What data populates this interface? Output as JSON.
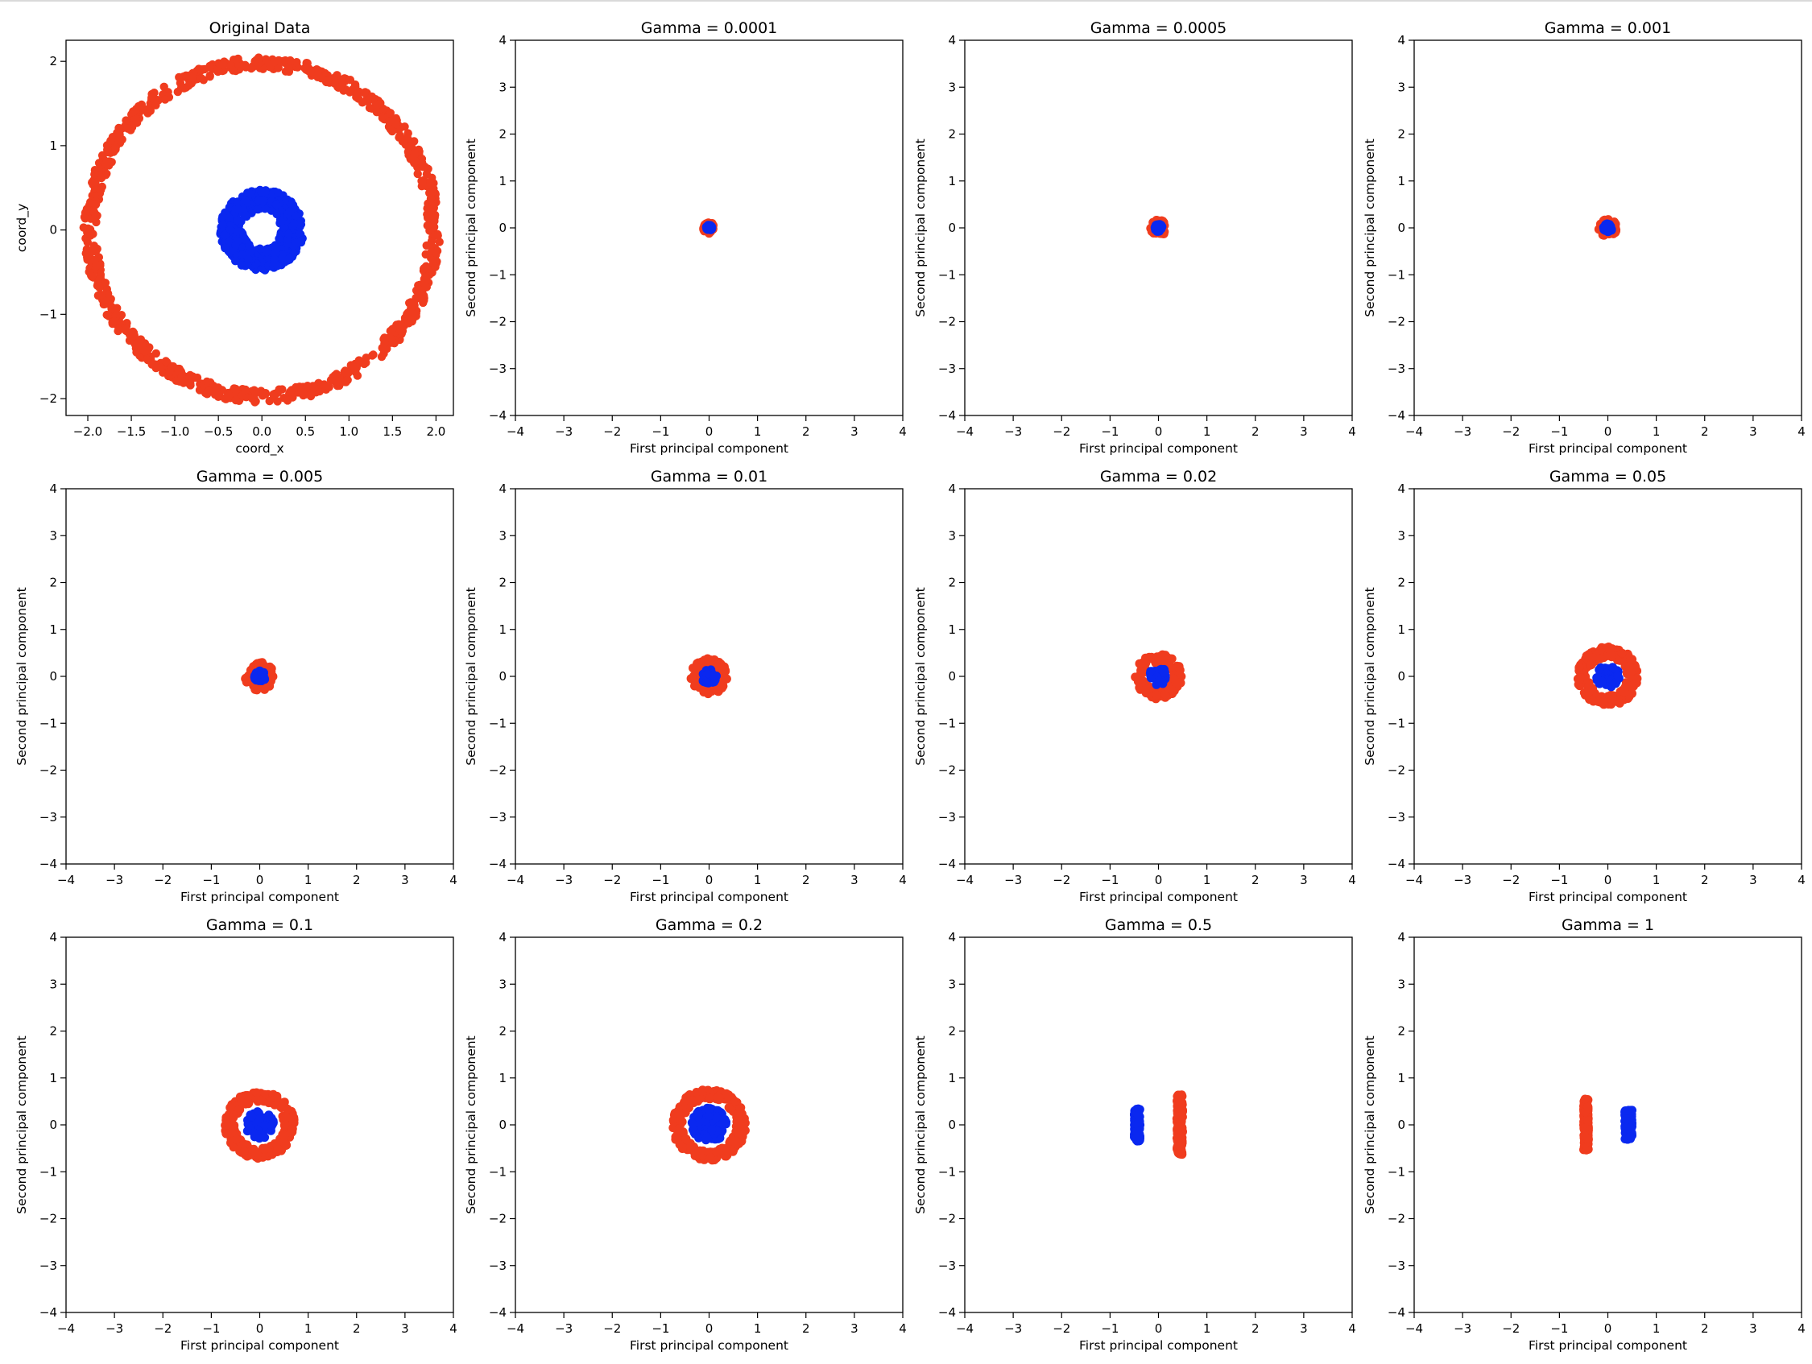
{
  "figure": {
    "colors": {
      "outer": "#f03c1e",
      "inner": "#0a28f0",
      "frame": "#000000"
    }
  },
  "chart_data": [
    {
      "type": "scatter",
      "title": "Original Data",
      "xlabel": "coord_x",
      "ylabel": "coord_y",
      "xlim": [
        -2.25,
        2.2
      ],
      "ylim": [
        -2.2,
        2.25
      ],
      "xticks": [
        -2.0,
        -1.5,
        -1.0,
        -0.5,
        0.0,
        0.5,
        1.0,
        1.5,
        2.0
      ],
      "xtick_labels": [
        "−2.0",
        "−1.5",
        "−1.0",
        "−0.5",
        "0.0",
        "0.5",
        "1.0",
        "1.5",
        "2.0"
      ],
      "yticks": [
        -2,
        -1,
        0,
        1,
        2
      ],
      "ytick_labels": [
        "−2",
        "−1",
        "0",
        "1",
        "2"
      ],
      "grid": false,
      "series": [
        {
          "shape": "ring",
          "center": [
            0,
            0
          ],
          "r_min": 1.9,
          "r_max": 2.05
        },
        {
          "shape": "ring",
          "center": [
            0,
            0
          ],
          "r_min": 0.22,
          "r_max": 0.48
        }
      ]
    },
    {
      "type": "scatter",
      "title": "Gamma = 0.0001",
      "xlabel": "First principal component",
      "ylabel": "Second principal component",
      "xlim": [
        -4,
        4
      ],
      "ylim": [
        -4,
        4
      ],
      "xticks": [
        -4,
        -3,
        -2,
        -1,
        0,
        1,
        2,
        3,
        4
      ],
      "xtick_labels": [
        "−4",
        "−3",
        "−2",
        "−1",
        "0",
        "1",
        "2",
        "3",
        "4"
      ],
      "yticks": [
        -4,
        -3,
        -2,
        -1,
        0,
        1,
        2,
        3,
        4
      ],
      "ytick_labels": [
        "−4",
        "−3",
        "−2",
        "−1",
        "0",
        "1",
        "2",
        "3",
        "4"
      ],
      "grid": false,
      "series": [
        {
          "shape": "ring",
          "center": [
            0,
            0
          ],
          "r_min": 0.0,
          "r_max": 0.12
        },
        {
          "shape": "ring",
          "center": [
            0,
            0
          ],
          "r_min": 0.0,
          "r_max": 0.06
        }
      ]
    },
    {
      "type": "scatter",
      "title": "Gamma = 0.0005",
      "xlabel": "First principal component",
      "ylabel": "Second principal component",
      "xlim": [
        -4,
        4
      ],
      "ylim": [
        -4,
        4
      ],
      "xticks": [
        -4,
        -3,
        -2,
        -1,
        0,
        1,
        2,
        3,
        4
      ],
      "xtick_labels": [
        "−4",
        "−3",
        "−2",
        "−1",
        "0",
        "1",
        "2",
        "3",
        "4"
      ],
      "yticks": [
        -4,
        -3,
        -2,
        -1,
        0,
        1,
        2,
        3,
        4
      ],
      "ytick_labels": [
        "−4",
        "−3",
        "−2",
        "−1",
        "0",
        "1",
        "2",
        "3",
        "4"
      ],
      "grid": false,
      "series": [
        {
          "shape": "ring",
          "center": [
            0,
            0
          ],
          "r_min": 0.0,
          "r_max": 0.17
        },
        {
          "shape": "ring",
          "center": [
            0,
            0
          ],
          "r_min": 0.0,
          "r_max": 0.08
        }
      ]
    },
    {
      "type": "scatter",
      "title": "Gamma = 0.001",
      "xlabel": "First principal component",
      "ylabel": "Second principal component",
      "xlim": [
        -4,
        4
      ],
      "ylim": [
        -4,
        4
      ],
      "xticks": [
        -4,
        -3,
        -2,
        -1,
        0,
        1,
        2,
        3,
        4
      ],
      "xtick_labels": [
        "−4",
        "−3",
        "−2",
        "−1",
        "0",
        "1",
        "2",
        "3",
        "4"
      ],
      "yticks": [
        -4,
        -3,
        -2,
        -1,
        0,
        1,
        2,
        3,
        4
      ],
      "ytick_labels": [
        "−4",
        "−3",
        "−2",
        "−1",
        "0",
        "1",
        "2",
        "3",
        "4"
      ],
      "grid": false,
      "series": [
        {
          "shape": "ring",
          "center": [
            0,
            0
          ],
          "r_min": 0.0,
          "r_max": 0.19
        },
        {
          "shape": "ring",
          "center": [
            0,
            0
          ],
          "r_min": 0.0,
          "r_max": 0.09
        }
      ]
    },
    {
      "type": "scatter",
      "title": "Gamma = 0.005",
      "xlabel": "First principal component",
      "ylabel": "Second principal component",
      "xlim": [
        -4,
        4
      ],
      "ylim": [
        -4,
        4
      ],
      "xticks": [
        -4,
        -3,
        -2,
        -1,
        0,
        1,
        2,
        3,
        4
      ],
      "xtick_labels": [
        "−4",
        "−3",
        "−2",
        "−1",
        "0",
        "1",
        "2",
        "3",
        "4"
      ],
      "yticks": [
        -4,
        -3,
        -2,
        -1,
        0,
        1,
        2,
        3,
        4
      ],
      "ytick_labels": [
        "−4",
        "−3",
        "−2",
        "−1",
        "0",
        "1",
        "2",
        "3",
        "4"
      ],
      "grid": false,
      "series": [
        {
          "shape": "ring",
          "center": [
            0,
            0
          ],
          "r_min": 0.07,
          "r_max": 0.3
        },
        {
          "shape": "ring",
          "center": [
            0,
            0
          ],
          "r_min": 0.0,
          "r_max": 0.12
        }
      ]
    },
    {
      "type": "scatter",
      "title": "Gamma = 0.01",
      "xlabel": "First principal component",
      "ylabel": "Second principal component",
      "xlim": [
        -4,
        4
      ],
      "ylim": [
        -4,
        4
      ],
      "xticks": [
        -4,
        -3,
        -2,
        -1,
        0,
        1,
        2,
        3,
        4
      ],
      "xtick_labels": [
        "−4",
        "−3",
        "−2",
        "−1",
        "0",
        "1",
        "2",
        "3",
        "4"
      ],
      "yticks": [
        -4,
        -3,
        -2,
        -1,
        0,
        1,
        2,
        3,
        4
      ],
      "ytick_labels": [
        "−4",
        "−3",
        "−2",
        "−1",
        "0",
        "1",
        "2",
        "3",
        "4"
      ],
      "grid": false,
      "series": [
        {
          "shape": "ring",
          "center": [
            0,
            0
          ],
          "r_min": 0.12,
          "r_max": 0.38
        },
        {
          "shape": "ring",
          "center": [
            0,
            0
          ],
          "r_min": 0.0,
          "r_max": 0.16
        }
      ]
    },
    {
      "type": "scatter",
      "title": "Gamma = 0.02",
      "xlabel": "First principal component",
      "ylabel": "Second principal component",
      "xlim": [
        -4,
        4
      ],
      "ylim": [
        -4,
        4
      ],
      "xticks": [
        -4,
        -3,
        -2,
        -1,
        0,
        1,
        2,
        3,
        4
      ],
      "xtick_labels": [
        "−4",
        "−3",
        "−2",
        "−1",
        "0",
        "1",
        "2",
        "3",
        "4"
      ],
      "yticks": [
        -4,
        -3,
        -2,
        -1,
        0,
        1,
        2,
        3,
        4
      ],
      "ytick_labels": [
        "−4",
        "−3",
        "−2",
        "−1",
        "0",
        "1",
        "2",
        "3",
        "4"
      ],
      "grid": false,
      "series": [
        {
          "shape": "ring",
          "center": [
            0,
            0
          ],
          "r_min": 0.28,
          "r_max": 0.48
        },
        {
          "shape": "ring",
          "center": [
            0,
            0
          ],
          "r_min": 0.0,
          "r_max": 0.2
        }
      ]
    },
    {
      "type": "scatter",
      "title": "Gamma = 0.05",
      "xlabel": "First principal component",
      "ylabel": "Second principal component",
      "xlim": [
        -4,
        4
      ],
      "ylim": [
        -4,
        4
      ],
      "xticks": [
        -4,
        -3,
        -2,
        -1,
        0,
        1,
        2,
        3,
        4
      ],
      "xtick_labels": [
        "−4",
        "−3",
        "−2",
        "−1",
        "0",
        "1",
        "2",
        "3",
        "4"
      ],
      "yticks": [
        -4,
        -3,
        -2,
        -1,
        0,
        1,
        2,
        3,
        4
      ],
      "ytick_labels": [
        "−4",
        "−3",
        "−2",
        "−1",
        "0",
        "1",
        "2",
        "3",
        "4"
      ],
      "grid": false,
      "series": [
        {
          "shape": "ring",
          "center": [
            0,
            0
          ],
          "r_min": 0.4,
          "r_max": 0.63
        },
        {
          "shape": "ring",
          "center": [
            0,
            0
          ],
          "r_min": 0.0,
          "r_max": 0.24
        }
      ]
    },
    {
      "type": "scatter",
      "title": "Gamma = 0.1",
      "xlabel": "First principal component",
      "ylabel": "Second principal component",
      "xlim": [
        -4,
        4
      ],
      "ylim": [
        -4,
        4
      ],
      "xticks": [
        -4,
        -3,
        -2,
        -1,
        0,
        1,
        2,
        3,
        4
      ],
      "xtick_labels": [
        "−4",
        "−3",
        "−2",
        "−1",
        "0",
        "1",
        "2",
        "3",
        "4"
      ],
      "yticks": [
        -4,
        -3,
        -2,
        -1,
        0,
        1,
        2,
        3,
        4
      ],
      "ytick_labels": [
        "−4",
        "−3",
        "−2",
        "−1",
        "0",
        "1",
        "2",
        "3",
        "4"
      ],
      "grid": false,
      "series": [
        {
          "shape": "ring",
          "center": [
            0,
            0
          ],
          "r_min": 0.5,
          "r_max": 0.72
        },
        {
          "shape": "ring",
          "center": [
            0,
            0
          ],
          "r_min": 0.03,
          "r_max": 0.29
        }
      ]
    },
    {
      "type": "scatter",
      "title": "Gamma = 0.2",
      "xlabel": "First principal component",
      "ylabel": "Second principal component",
      "xlim": [
        -4,
        4
      ],
      "ylim": [
        -4,
        4
      ],
      "xticks": [
        -4,
        -3,
        -2,
        -1,
        0,
        1,
        2,
        3,
        4
      ],
      "xtick_labels": [
        "−4",
        "−3",
        "−2",
        "−1",
        "0",
        "1",
        "2",
        "3",
        "4"
      ],
      "yticks": [
        -4,
        -3,
        -2,
        -1,
        0,
        1,
        2,
        3,
        4
      ],
      "ytick_labels": [
        "−4",
        "−3",
        "−2",
        "−1",
        "0",
        "1",
        "2",
        "3",
        "4"
      ],
      "grid": false,
      "series": [
        {
          "shape": "ring",
          "center": [
            0,
            0
          ],
          "r_min": 0.55,
          "r_max": 0.76
        },
        {
          "shape": "ring",
          "center": [
            0,
            0
          ],
          "r_min": 0.05,
          "r_max": 0.36
        }
      ]
    },
    {
      "type": "scatter",
      "title": "Gamma = 0.5",
      "xlabel": "First principal component",
      "ylabel": "Second principal component",
      "xlim": [
        -4,
        4
      ],
      "ylim": [
        -4,
        4
      ],
      "xticks": [
        -4,
        -3,
        -2,
        -1,
        0,
        1,
        2,
        3,
        4
      ],
      "xtick_labels": [
        "−4",
        "−3",
        "−2",
        "−1",
        "0",
        "1",
        "2",
        "3",
        "4"
      ],
      "yticks": [
        -4,
        -3,
        -2,
        -1,
        0,
        1,
        2,
        3,
        4
      ],
      "ytick_labels": [
        "−4",
        "−3",
        "−2",
        "−1",
        "0",
        "1",
        "2",
        "3",
        "4"
      ],
      "grid": false,
      "series": [
        {
          "shape": "strip",
          "x_range": [
            0.38,
            0.5
          ],
          "y_range": [
            -0.65,
            0.65
          ]
        },
        {
          "shape": "strip",
          "x_range": [
            -0.5,
            -0.38
          ],
          "y_range": [
            -0.35,
            0.35
          ]
        }
      ]
    },
    {
      "type": "scatter",
      "title": "Gamma = 1",
      "xlabel": "First principal component",
      "ylabel": "Second principal component",
      "xlim": [
        -4,
        4
      ],
      "ylim": [
        -4,
        4
      ],
      "xticks": [
        -4,
        -3,
        -2,
        -1,
        0,
        1,
        2,
        3,
        4
      ],
      "xtick_labels": [
        "−4",
        "−3",
        "−2",
        "−1",
        "0",
        "1",
        "2",
        "3",
        "4"
      ],
      "yticks": [
        -4,
        -3,
        -2,
        -1,
        0,
        1,
        2,
        3,
        4
      ],
      "ytick_labels": [
        "−4",
        "−3",
        "−2",
        "−1",
        "0",
        "1",
        "2",
        "3",
        "4"
      ],
      "grid": false,
      "series": [
        {
          "shape": "strip",
          "x_range": [
            -0.5,
            -0.4
          ],
          "y_range": [
            -0.55,
            0.55
          ]
        },
        {
          "shape": "strip",
          "x_range": [
            0.35,
            0.5
          ],
          "y_range": [
            -0.32,
            0.32
          ]
        }
      ]
    }
  ]
}
